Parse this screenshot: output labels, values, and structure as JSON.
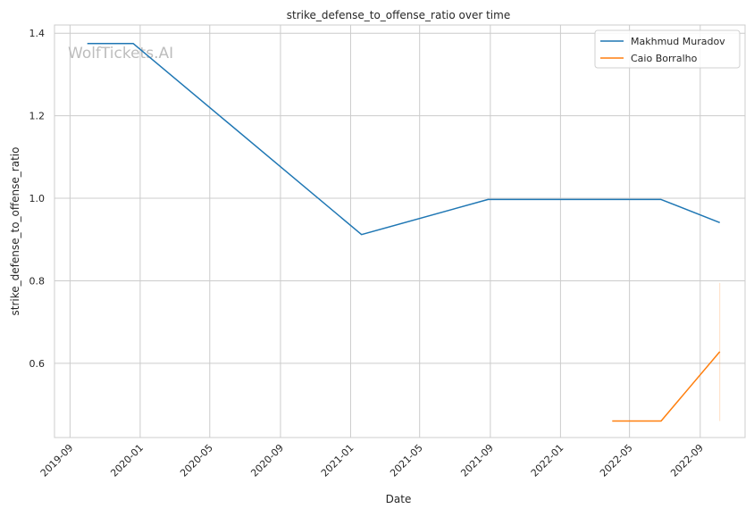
{
  "chart_data": {
    "type": "line",
    "title": "strike_defense_to_offense_ratio over time",
    "xlabel": "Date",
    "ylabel": "strike_defense_to_offense_ratio",
    "watermark": "WolfTickets.AI",
    "x_axis": "date",
    "xlim": [
      "2019-08-05",
      "2022-11-18"
    ],
    "ylim": [
      0.42,
      1.42
    ],
    "x_ticks": [
      {
        "date": "2019-09-01",
        "label": "2019-09"
      },
      {
        "date": "2020-01-01",
        "label": "2020-01"
      },
      {
        "date": "2020-05-01",
        "label": "2020-05"
      },
      {
        "date": "2020-09-01",
        "label": "2020-09"
      },
      {
        "date": "2021-01-01",
        "label": "2021-01"
      },
      {
        "date": "2021-05-01",
        "label": "2021-05"
      },
      {
        "date": "2021-09-01",
        "label": "2021-09"
      },
      {
        "date": "2022-01-01",
        "label": "2022-01"
      },
      {
        "date": "2022-05-01",
        "label": "2022-05"
      },
      {
        "date": "2022-09-01",
        "label": "2022-09"
      }
    ],
    "y_ticks": [
      {
        "value": 0.6,
        "label": "0.6"
      },
      {
        "value": 0.8,
        "label": "0.8"
      },
      {
        "value": 1.0,
        "label": "1.0"
      },
      {
        "value": 1.2,
        "label": "1.2"
      },
      {
        "value": 1.4,
        "label": "1.4"
      }
    ],
    "grid": true,
    "legend_position": "top-right",
    "series": [
      {
        "name": "Makhmud Muradov",
        "color": "#1f77b4",
        "points": [
          {
            "x": "2019-10-01",
            "y": 1.375
          },
          {
            "x": "2019-12-20",
            "y": 1.375
          },
          {
            "x": "2021-01-20",
            "y": 0.912
          },
          {
            "x": "2021-08-28",
            "y": 0.997
          },
          {
            "x": "2022-06-25",
            "y": 0.997
          },
          {
            "x": "2022-10-05",
            "y": 0.941
          }
        ]
      },
      {
        "name": "Caio Borralho",
        "color": "#ff7f0e",
        "points": [
          {
            "x": "2022-04-01",
            "y": 0.46
          },
          {
            "x": "2022-06-25",
            "y": 0.46
          },
          {
            "x": "2022-10-05",
            "y": 0.628
          }
        ],
        "band": {
          "x": "2022-10-05",
          "low": 0.46,
          "high": 0.795,
          "color": "#ff7f0e"
        }
      }
    ]
  }
}
